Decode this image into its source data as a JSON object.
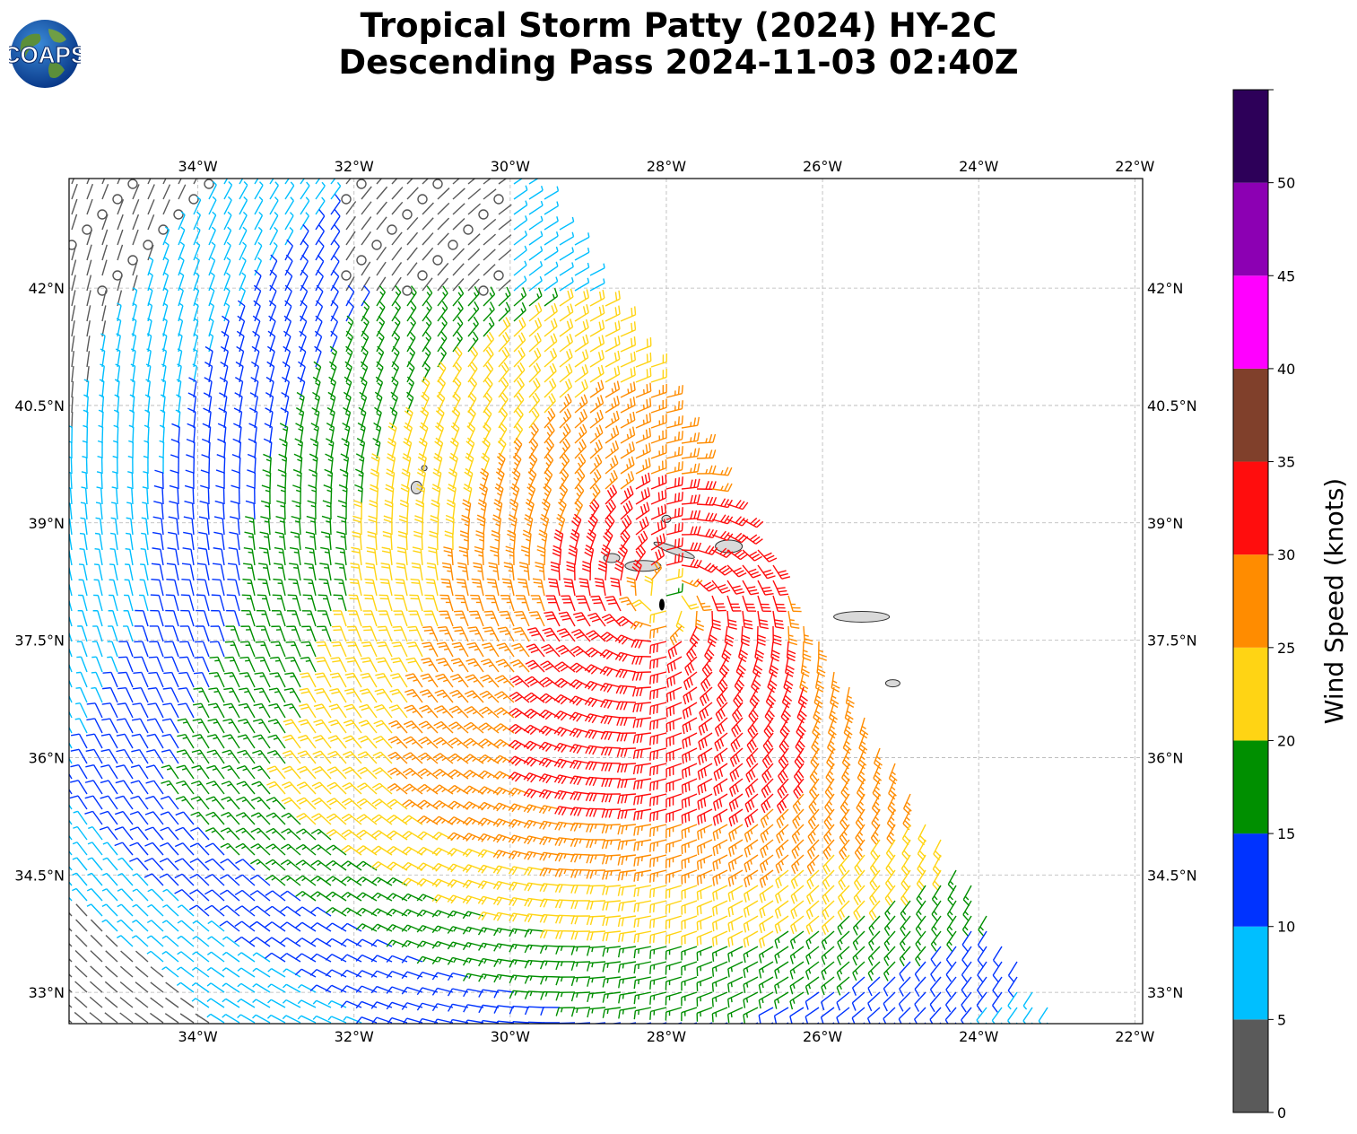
{
  "title": {
    "line1": "Tropical Storm Patty (2024) HY-2C",
    "line2": "Descending Pass 2024-11-03 02:40Z"
  },
  "logo": {
    "text": "COAPS",
    "icon": "globe-logo"
  },
  "map": {
    "extent": {
      "lon_min": -35.65,
      "lon_max": -21.9,
      "lat_min": 32.6,
      "lat_max": 43.4
    },
    "lon_ticks": [
      {
        "value": -34,
        "label": "34°W"
      },
      {
        "value": -32,
        "label": "32°W"
      },
      {
        "value": -30,
        "label": "30°W"
      },
      {
        "value": -28,
        "label": "28°W"
      },
      {
        "value": -26,
        "label": "26°W"
      },
      {
        "value": -24,
        "label": "24°W"
      },
      {
        "value": -22,
        "label": "22°W"
      }
    ],
    "lat_ticks": [
      {
        "value": 33,
        "label": "33°N"
      },
      {
        "value": 34.5,
        "label": "34.5°N"
      },
      {
        "value": 36,
        "label": "36°N"
      },
      {
        "value": 37.5,
        "label": "37.5°N"
      },
      {
        "value": 39,
        "label": "39°N"
      },
      {
        "value": 40.5,
        "label": "40.5°N"
      },
      {
        "value": 42,
        "label": "42°N"
      }
    ],
    "storm_center": {
      "lon": -28.0,
      "lat": 38.0
    },
    "islands": [
      {
        "name": "Flores",
        "lon": -31.2,
        "lat": 39.45
      },
      {
        "name": "Corvo",
        "lon": -31.1,
        "lat": 39.7
      },
      {
        "name": "Graciosa",
        "lon": -28.0,
        "lat": 39.05
      },
      {
        "name": "Terceira",
        "lon": -27.2,
        "lat": 38.7
      },
      {
        "name": "Sao Jorge",
        "lon": -27.9,
        "lat": 38.65
      },
      {
        "name": "Pico",
        "lon": -28.3,
        "lat": 38.45
      },
      {
        "name": "Faial",
        "lon": -28.7,
        "lat": 38.55
      },
      {
        "name": "Sao Miguel",
        "lon": -25.5,
        "lat": 37.8
      },
      {
        "name": "Santa Maria",
        "lon": -25.1,
        "lat": 36.95
      }
    ]
  },
  "colorbar": {
    "label": "Wind Speed (knots)",
    "bins": [
      {
        "min": 0,
        "max": 5,
        "color": "#5a5a5a"
      },
      {
        "min": 5,
        "max": 10,
        "color": "#00bfff"
      },
      {
        "min": 10,
        "max": 15,
        "color": "#0033ff"
      },
      {
        "min": 15,
        "max": 20,
        "color": "#008f00"
      },
      {
        "min": 20,
        "max": 25,
        "color": "#ffd414"
      },
      {
        "min": 25,
        "max": 30,
        "color": "#ff8c00"
      },
      {
        "min": 30,
        "max": 35,
        "color": "#ff0d0d"
      },
      {
        "min": 35,
        "max": 40,
        "color": "#80402b"
      },
      {
        "min": 40,
        "max": 45,
        "color": "#ff00ff"
      },
      {
        "min": 45,
        "max": 50,
        "color": "#8c00b3"
      },
      {
        "min": 50,
        "max": 55,
        "color": "#2d0059"
      }
    ],
    "tick_values": [
      0,
      5,
      10,
      15,
      20,
      25,
      30,
      35,
      40,
      45,
      50
    ]
  }
}
